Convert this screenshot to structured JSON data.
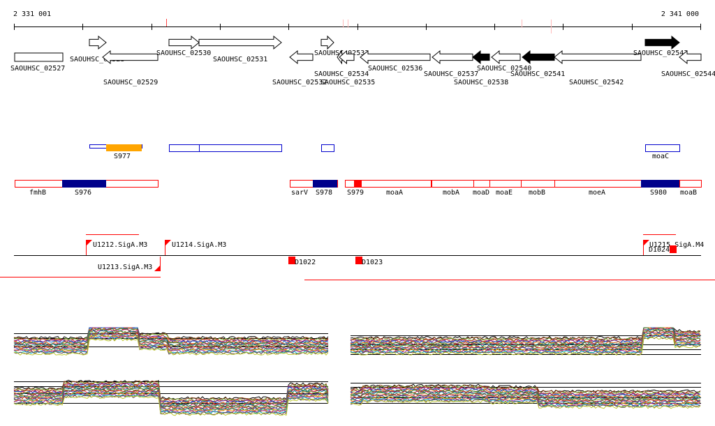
{
  "coords": {
    "start": "2 331 001",
    "end": "2 341 000"
  },
  "colors": {
    "ink": "#000000",
    "region_red": "#ff0000",
    "region_blue": "#0000cc",
    "fill_blue": "#00008b",
    "fill_orange": "#ffa500",
    "fill_red": "#ff0000",
    "tick_red": "#ff4444",
    "tick_pink": "#ffbbbb"
  },
  "genes": [
    {
      "name": "SAOUHSC_02527",
      "strand": "none",
      "fill": "white"
    },
    {
      "name": "SAOUHSC_02528",
      "strand": "+",
      "fill": "white"
    },
    {
      "name": "SAOUHSC_02529",
      "strand": "-",
      "fill": "white"
    },
    {
      "name": "SAOUHSC_02530",
      "strand": "+",
      "fill": "white"
    },
    {
      "name": "SAOUHSC_02531",
      "strand": "+",
      "fill": "white"
    },
    {
      "name": "SAOUHSC_02532",
      "strand": "-",
      "fill": "white"
    },
    {
      "name": "SAOUHSC_02533",
      "strand": "+",
      "fill": "white"
    },
    {
      "name": "SAOUHSC_02534",
      "strand": "-",
      "fill": "white"
    },
    {
      "name": "SAOUHSC_02535",
      "strand": "-",
      "fill": "white"
    },
    {
      "name": "SAOUHSC_02536",
      "strand": "-",
      "fill": "white"
    },
    {
      "name": "SAOUHSC_02537",
      "strand": "-",
      "fill": "white"
    },
    {
      "name": "SAOUHSC_02538",
      "strand": "-",
      "fill": "black"
    },
    {
      "name": "SAOUHSC_02540",
      "strand": "-",
      "fill": "white"
    },
    {
      "name": "SAOUHSC_02541",
      "strand": "-",
      "fill": "black"
    },
    {
      "name": "SAOUHSC_02542",
      "strand": "-",
      "fill": "white"
    },
    {
      "name": "SAOUHSC_02543",
      "strand": "+",
      "fill": "black"
    },
    {
      "name": "SAOUHSC_02544",
      "strand": "-",
      "fill": "white"
    }
  ],
  "blue_regions": [
    {
      "name": "S977",
      "type": "blue-outline"
    },
    {
      "name": "S977",
      "type": "orange-fill"
    },
    {
      "name": "",
      "type": "blue-outline"
    },
    {
      "name": "",
      "type": "blue-outline"
    },
    {
      "name": "",
      "type": "blue-outline"
    },
    {
      "name": "moaC",
      "type": "blue-outline"
    }
  ],
  "red_regions": [
    {
      "name": "fmhB"
    },
    {
      "name": "S976"
    },
    {
      "name": "sarV"
    },
    {
      "name": "S978"
    },
    {
      "name": "S979"
    },
    {
      "name": "moaA"
    },
    {
      "name": "mobA"
    },
    {
      "name": "moaD"
    },
    {
      "name": "moaE"
    },
    {
      "name": "mobB"
    },
    {
      "name": "moeA"
    },
    {
      "name": "S980"
    },
    {
      "name": "moaB"
    }
  ],
  "promoters": [
    {
      "name": "U1212.SigA.M3"
    },
    {
      "name": "U1213.SigA.M3"
    },
    {
      "name": "U1214.SigA.M3"
    },
    {
      "name": "U1215.SigA.M4"
    }
  ],
  "terminators": [
    {
      "name": "D1022"
    },
    {
      "name": "D1023"
    },
    {
      "name": "D1024"
    }
  ],
  "expression": {
    "panels": [
      "top-left",
      "top-right",
      "bottom-left",
      "bottom-right"
    ],
    "line_colors": [
      "#000000",
      "#8b4513",
      "#7cb342",
      "#c62828",
      "#6a1b9a",
      "#1565c0",
      "#ef6c00",
      "#2e7d32",
      "#ad1457",
      "#00838f",
      "#9e9d24",
      "#5d4037",
      "#e53935",
      "#3949ab",
      "#43a047",
      "#fb8c00",
      "#8e24aa",
      "#00acc1",
      "#6d4c41",
      "#c0ca33"
    ]
  }
}
